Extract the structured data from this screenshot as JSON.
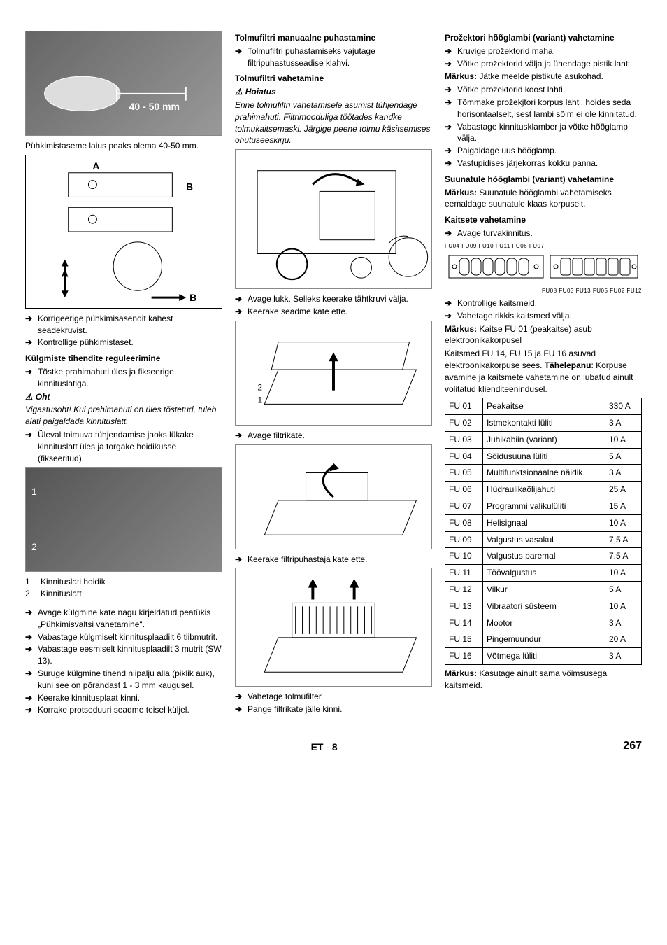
{
  "col1": {
    "img1_caption": "40 - 50 mm",
    "p1": "Pühkimistaseme laius peaks olema 40-50 mm.",
    "img2_labels": {
      "a1": "A",
      "b1": "B",
      "a2": "A",
      "b2": "B"
    },
    "arrows1": [
      "Korrigeerige pühkimisasendit kahest seadekruvist.",
      "Kontrollige pühkimistaset."
    ],
    "h_seal": "Külgmiste tihendite reguleerimine",
    "arrows2": [
      "Tõstke prahimahuti üles ja fikseerige kinnituslatiga."
    ],
    "h_danger": "Oht",
    "danger_txt": "Vigastusoht! Kui prahimahuti on üles tõstetud, tuleb alati paigaldada kinnituslatt.",
    "arrows3": [
      "Üleval toimuva tühjendamise jaoks lükake kinnituslatt üles ja torgake hoidikusse (fikseeritud)."
    ],
    "numlist": [
      {
        "n": "1",
        "t": "Kinnituslati hoidik"
      },
      {
        "n": "2",
        "t": "Kinnituslatt"
      }
    ],
    "arrows4": [
      "Avage külgmine kate nagu kirjeldatud peatükis „Pühkimisvaltsi vahetamine\".",
      "Vabastage külgmiselt kinnitusplaadilt 6 tiibmutrit.",
      "Vabastage eesmiselt kinnitusplaadilt 3 mutrit (SW 13).",
      "Suruge külgmine tihend niipalju alla (piklik auk), kuni see on põrandast 1 - 3 mm kaugusel.",
      "Keerake kinnitusplaat kinni.",
      "Korrake protseduuri seadme teisel küljel."
    ]
  },
  "col2": {
    "h_manual": "Tolmufiltri manuaalne puhastamine",
    "arrows1": [
      "Tolmufiltri puhastamiseks vajutage filtripuhastusseadise klahvi."
    ],
    "h_replace": "Tolmufiltri vahetamine",
    "h_warn": "Hoiatus",
    "warn_txt": " Enne tolmufiltri vahetamisele asumist tühjendage prahimahuti. Filtrimooduliga töötades kandke tolmukaitsemaski. Järgige peene tolmu käsitsemises ohutuseeskirju.",
    "arrows2": [
      "Avage lukk. Selleks keerake tähtkruvi välja.",
      "Keerake seadme kate ette."
    ],
    "arrows3": [
      "Avage filtrikate."
    ],
    "arrows4": [
      "Keerake filtripuhastaja kate ette."
    ],
    "arrows5": [
      "Vahetage tolmufilter.",
      "Pange filtrikate jälle kinni."
    ]
  },
  "col3": {
    "h_proj": "Prožektori hõõglambi (variant) vahetamine",
    "arrows1": [
      "Kruvige prožektorid maha.",
      "Võtke prožektorid välja ja ühendage pistik lahti."
    ],
    "note1_label": "Märkus:",
    "note1_txt": " Jätke meelde pistikute asukohad.",
    "arrows2": [
      "Võtke prožektorid koost lahti.",
      "Tõmmake prožekjtori korpus lahti, hoides seda horisontaalselt, sest lambi sõlm ei ole kinnitatud.",
      "Vabastage kinnitusklamber ja võtke hõõglamp välja.",
      "Paigaldage uus hõõglamp.",
      "Vastupidises järjekorras kokku panna."
    ],
    "h_dir": "Suunatule hõõglambi (variant) vahetamine",
    "note2_label": "Märkus:",
    "note2_txt": " Suunatule hõõglambi vahetamiseks eemaldage suunatule klaas korpuselt.",
    "h_fuse": "Kaitsete vahetamine",
    "arrows3": [
      "Avage turvakinnitus."
    ],
    "fuse_labels_top": "FU04 FU09  FU10  FU11 FU06 FU07",
    "fuse_labels_bot": "FU08 FU03  FU13  FU05 FU02 FU12",
    "arrows4": [
      "Kontrollige kaitsmeid.",
      "Vahetage rikkis kaitsmed välja."
    ],
    "note3_label": "Märkus:",
    "note3_txt": " Kaitse FU 01 (peakaitse) asub elektroonikakorpusel",
    "p_fuse": "Kaitsmed FU 14, FU 15 ja FU 16 asuvad elektroonikakorpuse sees. ",
    "p_fuse_bold": "Tähelepanu",
    "p_fuse2": ": Korpuse avamine ja kaitsmete vahetamine on lubatud ainult volitatud klienditeenindusel.",
    "table": [
      [
        "FU 01",
        "Peakaitse",
        "330 A"
      ],
      [
        "FU 02",
        "Istmekontakti lüliti",
        "3 A"
      ],
      [
        "FU 03",
        "Juhikabiin (variant)",
        "10 A"
      ],
      [
        "FU 04",
        "Sõidusuuna lüliti",
        "5 A"
      ],
      [
        "FU 05",
        "Multifunktsionaalne näidik",
        "3 A"
      ],
      [
        "FU 06",
        "Hüdraulikaõlijahuti",
        "25 A"
      ],
      [
        "FU 07",
        "Programmi valikulüliti",
        "15 A"
      ],
      [
        "FU 08",
        "Helisignaal",
        "10 A"
      ],
      [
        "FU 09",
        "Valgustus vasakul",
        "7,5 A"
      ],
      [
        "FU 10",
        "Valgustus paremal",
        "7,5 A"
      ],
      [
        "FU 11",
        "Töövalgustus",
        "10 A"
      ],
      [
        "FU 12",
        "Vilkur",
        "5 A"
      ],
      [
        "FU 13",
        "Vibraatori süsteem",
        "10 A"
      ],
      [
        "FU 14",
        "Mootor",
        "3 A"
      ],
      [
        "FU 15",
        "Pingemuundur",
        "20 A"
      ],
      [
        "FU 16",
        "Võtmega lüliti",
        "3 A"
      ]
    ],
    "note4_label": "Märkus:",
    "note4_txt": " Kasutage ainult sama võimsusega kaitsmeid."
  },
  "footer": {
    "lang": "ET",
    "sep": " - ",
    "page": "8",
    "abs": "267"
  }
}
